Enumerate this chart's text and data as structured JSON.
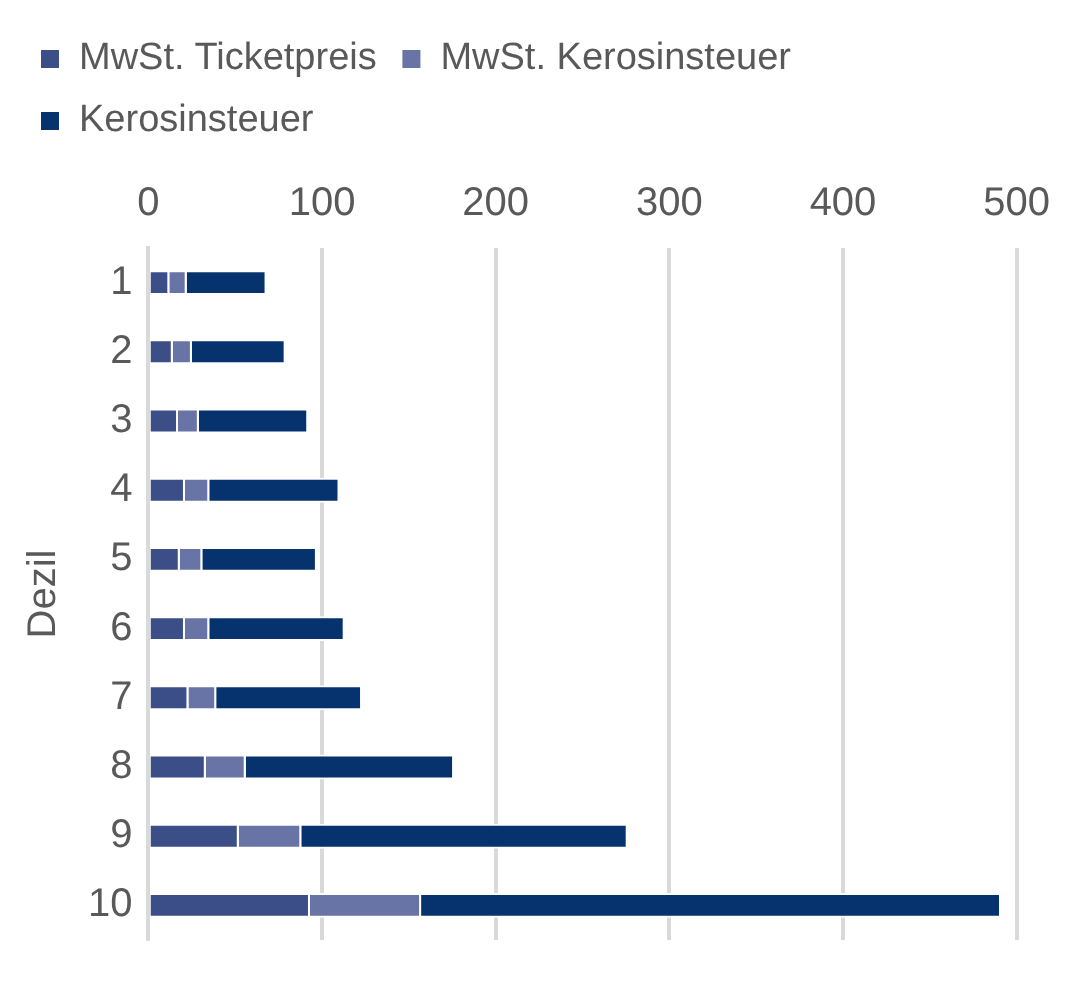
{
  "chart_data": {
    "type": "bar",
    "orientation": "horizontal",
    "stacked": true,
    "ylabel": "Dezil",
    "categories": [
      "1",
      "2",
      "3",
      "4",
      "5",
      "6",
      "7",
      "8",
      "9",
      "10"
    ],
    "series": [
      {
        "name": "MwSt. Ticketpreis",
        "color": "#3b4e87",
        "values": [
          12,
          14,
          17,
          21,
          18,
          21,
          23,
          33,
          52,
          93
        ]
      },
      {
        "name": "MwSt. Kerosinsteuer",
        "color": "#6873a6",
        "values": [
          10,
          11,
          12,
          14,
          13,
          14,
          16,
          23,
          36,
          64
        ]
      },
      {
        "name": "Kerosinsteuer",
        "color": "#06336e",
        "values": [
          46,
          54,
          63,
          75,
          66,
          78,
          84,
          120,
          188,
          334
        ]
      }
    ],
    "xlim": [
      0,
      500
    ],
    "xticks": [
      0,
      100,
      200,
      300,
      400,
      500
    ],
    "grid": "x",
    "legend": "top left"
  }
}
